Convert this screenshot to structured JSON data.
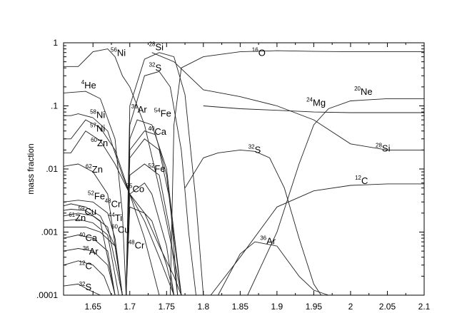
{
  "chart_data": {
    "type": "line",
    "title": "",
    "xlabel": "",
    "ylabel": "mass fraction",
    "xlim": [
      1.61,
      2.1
    ],
    "ylim": [
      0.0001,
      1
    ],
    "y_scale": "log",
    "grid": false,
    "x_ticks": [
      {
        "value": 1.65,
        "label": "1.65"
      },
      {
        "value": 1.7,
        "label": "1.7"
      },
      {
        "value": 1.75,
        "label": "1.75"
      },
      {
        "value": 1.8,
        "label": "1.8"
      },
      {
        "value": 1.85,
        "label": "1.85"
      },
      {
        "value": 1.9,
        "label": "1.9"
      },
      {
        "value": 1.95,
        "label": "1.95"
      },
      {
        "value": 2.0,
        "label": "2"
      },
      {
        "value": 2.05,
        "label": "2.05"
      },
      {
        "value": 2.1,
        "label": "2.1"
      }
    ],
    "y_ticks": [
      {
        "value": 0.0001,
        "label": ".0001"
      },
      {
        "value": 0.001,
        "label": ".001"
      },
      {
        "value": 0.01,
        "label": ".01"
      },
      {
        "value": 0.1,
        "label": ".1"
      },
      {
        "value": 1,
        "label": "1"
      }
    ],
    "series": [
      {
        "name": "56Ni",
        "x": [
          1.61,
          1.63,
          1.65,
          1.67,
          1.68,
          1.69,
          1.7,
          1.72,
          1.74,
          1.76,
          1.77
        ],
        "y": [
          0.42,
          0.42,
          0.72,
          0.8,
          0.6,
          0.3,
          0.2,
          0.05,
          0.005,
          0.0004,
          0.0001
        ]
      },
      {
        "name": "4He",
        "x": [
          1.61,
          1.64,
          1.66,
          1.68,
          1.69,
          1.695
        ],
        "y": [
          0.16,
          0.17,
          0.13,
          0.03,
          0.002,
          0.0001
        ]
      },
      {
        "name": "28Si-inner",
        "x": [
          1.695,
          1.7,
          1.72,
          1.74,
          1.76,
          1.775,
          1.79,
          1.8
        ],
        "y": [
          0.0001,
          0.1,
          0.55,
          0.7,
          0.6,
          0.15,
          0.003,
          0.0001
        ]
      },
      {
        "name": "32S-inner",
        "x": [
          1.695,
          1.7,
          1.72,
          1.74,
          1.755,
          1.77,
          1.78,
          1.79
        ],
        "y": [
          0.0001,
          0.05,
          0.3,
          0.35,
          0.2,
          0.02,
          0.001,
          0.0001
        ]
      },
      {
        "name": "16O",
        "x": [
          1.755,
          1.76,
          1.77,
          1.8,
          1.85,
          1.9,
          1.95,
          2.0,
          2.05,
          2.1
        ],
        "y": [
          0.0001,
          0.05,
          0.4,
          0.6,
          0.72,
          0.75,
          0.73,
          0.72,
          0.72,
          0.72
        ]
      },
      {
        "name": "28Si-outer",
        "x": [
          1.73,
          1.76,
          1.8,
          1.85,
          1.9,
          1.95,
          2.0,
          2.05,
          2.1
        ],
        "y": [
          0.7,
          0.5,
          0.18,
          0.14,
          0.1,
          0.06,
          0.025,
          0.02,
          0.02
        ]
      },
      {
        "name": "24Mg",
        "x": [
          1.8,
          1.85,
          1.9,
          1.95,
          2.0,
          2.05,
          2.1
        ],
        "y": [
          0.1,
          0.09,
          0.085,
          0.08,
          0.078,
          0.078,
          0.078
        ]
      },
      {
        "name": "20Ne",
        "x": [
          1.86,
          1.9,
          1.93,
          1.95,
          1.97,
          2.0,
          2.05,
          2.1
        ],
        "y": [
          0.0001,
          0.001,
          0.012,
          0.05,
          0.09,
          0.12,
          0.13,
          0.13
        ]
      },
      {
        "name": "32S-outer",
        "x": [
          1.775,
          1.8,
          1.82,
          1.85,
          1.87,
          1.89,
          1.91,
          1.93,
          1.95,
          1.96
        ],
        "y": [
          0.005,
          0.015,
          0.018,
          0.02,
          0.019,
          0.015,
          0.005,
          0.0008,
          0.00015,
          0.0001
        ]
      },
      {
        "name": "12C",
        "x": [
          1.81,
          1.85,
          1.9,
          1.95,
          2.0,
          2.05,
          2.1
        ],
        "y": [
          0.0001,
          0.0004,
          0.0025,
          0.0045,
          0.0055,
          0.0058,
          0.0058
        ]
      },
      {
        "name": "36Ar",
        "x": [
          1.82,
          1.85,
          1.87,
          1.9,
          1.93,
          1.95,
          1.97
        ],
        "y": [
          0.0001,
          0.00045,
          0.0007,
          0.0006,
          0.0002,
          0.00012,
          0.0001
        ]
      },
      {
        "name": "58Ni",
        "x": [
          1.61,
          1.62,
          1.63,
          1.65,
          1.67,
          1.69,
          1.7,
          1.72,
          1.74,
          1.76,
          1.77
        ],
        "y": [
          0.07,
          0.07,
          0.075,
          0.065,
          0.04,
          0.008,
          0.004,
          0.002,
          0.0006,
          0.0002,
          0.0001
        ]
      },
      {
        "name": "57Ni",
        "x": [
          1.61,
          1.62,
          1.64,
          1.66,
          1.68,
          1.7,
          1.72,
          1.74,
          1.76
        ],
        "y": [
          0.03,
          0.03,
          0.06,
          0.045,
          0.02,
          0.004,
          0.0015,
          0.0004,
          0.0001
        ]
      },
      {
        "name": "60Zn",
        "x": [
          1.61,
          1.62,
          1.64,
          1.66,
          1.68,
          1.7,
          1.72,
          1.74
        ],
        "y": [
          0.018,
          0.018,
          0.04,
          0.028,
          0.012,
          0.004,
          0.0008,
          0.0001
        ]
      },
      {
        "name": "62Zn",
        "x": [
          1.61,
          1.63,
          1.65,
          1.67,
          1.69
        ],
        "y": [
          0.011,
          0.012,
          0.009,
          0.004,
          0.0001
        ]
      },
      {
        "name": "36Ar-inner",
        "x": [
          1.695,
          1.7,
          1.71,
          1.73,
          1.75,
          1.76,
          1.77
        ],
        "y": [
          0.0001,
          0.03,
          0.06,
          0.05,
          0.01,
          0.001,
          0.0001
        ]
      },
      {
        "name": "40Ca",
        "x": [
          1.695,
          1.7,
          1.72,
          1.735,
          1.75,
          1.76,
          1.77
        ],
        "y": [
          0.0001,
          0.02,
          0.04,
          0.035,
          0.008,
          0.0008,
          0.0001
        ]
      },
      {
        "name": "54Fe",
        "x": [
          1.695,
          1.7,
          1.72,
          1.74,
          1.755,
          1.765
        ],
        "y": [
          0.0001,
          0.015,
          0.03,
          0.02,
          0.003,
          0.0001
        ]
      },
      {
        "name": "52Fe",
        "x": [
          1.695,
          1.7,
          1.72,
          1.74,
          1.755,
          1.765
        ],
        "y": [
          0.0001,
          0.008,
          0.012,
          0.008,
          0.001,
          0.0001
        ]
      },
      {
        "name": "55Co",
        "x": [
          1.695,
          1.7,
          1.72,
          1.73,
          1.75,
          1.76
        ],
        "y": [
          0.0001,
          0.004,
          0.006,
          0.004,
          0.0006,
          0.0001
        ]
      },
      {
        "name": "48Cr",
        "x": [
          1.695,
          1.7,
          1.72,
          1.73,
          1.75,
          1.76
        ],
        "y": [
          0.0001,
          0.0025,
          0.002,
          0.0015,
          0.0003,
          0.0001
        ]
      },
      {
        "name": "52Fe-low",
        "x": [
          1.61,
          1.63,
          1.65,
          1.67,
          1.68,
          1.69
        ],
        "y": [
          0.003,
          0.0032,
          0.003,
          0.002,
          0.0008,
          0.0001
        ]
      },
      {
        "name": "59Cu",
        "x": [
          1.61,
          1.62,
          1.64,
          1.66,
          1.68,
          1.69
        ],
        "y": [
          0.0026,
          0.0028,
          0.0025,
          0.0018,
          0.0006,
          0.0001
        ]
      },
      {
        "name": "61Zn",
        "x": [
          1.61,
          1.62,
          1.64,
          1.66,
          1.68
        ],
        "y": [
          0.0022,
          0.0023,
          0.0022,
          0.0015,
          0.0001
        ]
      },
      {
        "name": "48Cr-low",
        "x": [
          1.61,
          1.63,
          1.65,
          1.67,
          1.69
        ],
        "y": [
          0.0018,
          0.002,
          0.0018,
          0.0012,
          0.0001
        ]
      },
      {
        "name": "44Ti",
        "x": [
          1.61,
          1.63,
          1.65,
          1.67,
          1.685
        ],
        "y": [
          0.0015,
          0.0016,
          0.0014,
          0.0009,
          0.0001
        ]
      },
      {
        "name": "60Cu",
        "x": [
          1.61,
          1.64,
          1.66,
          1.68,
          1.69
        ],
        "y": [
          0.0012,
          0.0012,
          0.001,
          0.0006,
          0.0001
        ]
      },
      {
        "name": "40Ca-low",
        "x": [
          1.61,
          1.63,
          1.65,
          1.67,
          1.68
        ],
        "y": [
          0.0008,
          0.0009,
          0.0008,
          0.0005,
          0.0001
        ]
      },
      {
        "name": "36Ar-low",
        "x": [
          1.61,
          1.63,
          1.65,
          1.67,
          1.68
        ],
        "y": [
          0.0005,
          0.00055,
          0.0005,
          0.0003,
          0.0001
        ]
      },
      {
        "name": "12C-low",
        "x": [
          1.61,
          1.63,
          1.65,
          1.665,
          1.675
        ],
        "y": [
          0.0003,
          0.00035,
          0.0003,
          0.0002,
          0.0001
        ]
      },
      {
        "name": "32S-low",
        "x": [
          1.61,
          1.63,
          1.645,
          1.66
        ],
        "y": [
          0.00014,
          0.00015,
          0.00012,
          0.0001
        ]
      }
    ],
    "annotations": [
      {
        "mass": "56",
        "symbol": "Ni",
        "x": 1.674,
        "y": 0.62
      },
      {
        "mass": "28",
        "symbol": "Si",
        "x": 1.726,
        "y": 0.76
      },
      {
        "mass": "32",
        "symbol": "S",
        "x": 1.726,
        "y": 0.36
      },
      {
        "mass": "16",
        "symbol": "O",
        "x": 1.866,
        "y": 0.62
      },
      {
        "mass": "4",
        "symbol": "He",
        "x": 1.634,
        "y": 0.19
      },
      {
        "mass": "24",
        "symbol": "Mg",
        "x": 1.94,
        "y": 0.1
      },
      {
        "mass": "20",
        "symbol": "Ne",
        "x": 2.005,
        "y": 0.15
      },
      {
        "mass": "58",
        "symbol": "Ni",
        "x": 1.646,
        "y": 0.064
      },
      {
        "mass": "57",
        "symbol": "Ni",
        "x": 1.646,
        "y": 0.039
      },
      {
        "mass": "36",
        "symbol": "Ar",
        "x": 1.702,
        "y": 0.078
      },
      {
        "mass": "54",
        "symbol": "Fe",
        "x": 1.733,
        "y": 0.068
      },
      {
        "mass": "40",
        "symbol": "Ca",
        "x": 1.725,
        "y": 0.035
      },
      {
        "mass": "60",
        "symbol": "Zn",
        "x": 1.647,
        "y": 0.023
      },
      {
        "mass": "32",
        "symbol": "S",
        "x": 1.861,
        "y": 0.018
      },
      {
        "mass": "28",
        "symbol": "Si",
        "x": 2.034,
        "y": 0.019
      },
      {
        "mass": "62",
        "symbol": "Zn",
        "x": 1.64,
        "y": 0.0088
      },
      {
        "mass": "52",
        "symbol": "Fe",
        "x": 1.725,
        "y": 0.009
      },
      {
        "mass": "12",
        "symbol": "C",
        "x": 2.006,
        "y": 0.0058
      },
      {
        "mass": "55",
        "symbol": "Co",
        "x": 1.695,
        "y": 0.0043
      },
      {
        "mass": "52",
        "symbol": "Fe",
        "x": 1.643,
        "y": 0.0033
      },
      {
        "mass": "48",
        "symbol": "Cr",
        "x": 1.666,
        "y": 0.0025
      },
      {
        "mass": "59",
        "symbol": "Cu",
        "x": 1.63,
        "y": 0.0019
      },
      {
        "mass": "61",
        "symbol": "Zn",
        "x": 1.617,
        "y": 0.0015
      },
      {
        "mass": "44",
        "symbol": "Ti",
        "x": 1.671,
        "y": 0.0015
      },
      {
        "mass": "60",
        "symbol": "Cu",
        "x": 1.675,
        "y": 0.00098
      },
      {
        "mass": "40",
        "symbol": "Ca",
        "x": 1.631,
        "y": 0.00072
      },
      {
        "mass": "48",
        "symbol": "Cr",
        "x": 1.698,
        "y": 0.00055
      },
      {
        "mass": "36",
        "symbol": "Ar",
        "x": 1.877,
        "y": 0.00064
      },
      {
        "mass": "36",
        "symbol": "Ar",
        "x": 1.636,
        "y": 0.00044
      },
      {
        "mass": "12",
        "symbol": "C",
        "x": 1.631,
        "y": 0.00026
      },
      {
        "mass": "32",
        "symbol": "S",
        "x": 1.631,
        "y": 0.00012
      }
    ]
  }
}
